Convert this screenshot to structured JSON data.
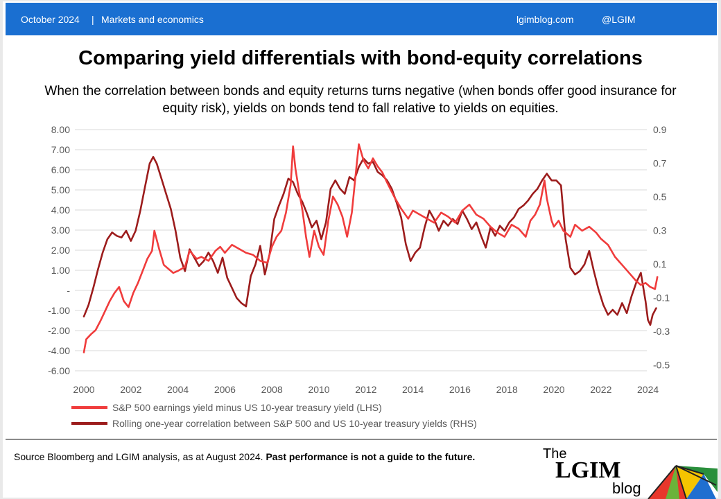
{
  "header": {
    "date": "October 2024",
    "separator": "|",
    "section": "Markets and economics",
    "site": "lgimblog.com",
    "handle": "@LGIM"
  },
  "title": "Comparing yield differentials with bond-equity correlations",
  "subtitle": "When the correlation between bonds and equity returns turns negative (when bonds offer good insurance for equity risk), yields on bonds tend to fall relative to yields on equities.",
  "footer": {
    "source": "Source Bloomberg and LGIM  analysis, as at August 2024.",
    "disclaimer": "Past performance is not a guide to the future."
  },
  "logo": {
    "the": "The",
    "name": "LGIM",
    "blog": "blog"
  },
  "colors": {
    "header_bg": "#1a6fd1",
    "lhs_series": "#f03c3c",
    "rhs_series": "#9c1c1c",
    "gridline": "#d9d9d9",
    "tick_text": "#595959"
  },
  "chart_data": {
    "type": "line",
    "x_ticks": [
      2000,
      2002,
      2004,
      2006,
      2008,
      2010,
      2012,
      2014,
      2016,
      2018,
      2020,
      2022,
      2024
    ],
    "y_left_ticks": [
      "8.00",
      "7.00",
      "6.00",
      "5.00",
      "4.00",
      "3.00",
      "2.00",
      "1.00",
      "-",
      "-1.00",
      "-2.00",
      "-4.00",
      "-6.00"
    ],
    "y_left_lim": [
      -6,
      8
    ],
    "y_right_ticks": [
      "0.9",
      "0.7",
      "0.5",
      "0.3",
      "0.1",
      "-0.1",
      "-0.3",
      "-0.5"
    ],
    "y_right_lim": [
      -0.6,
      0.9
    ],
    "grid": true,
    "legend_position": "bottom-left",
    "series": [
      {
        "name": "S&P 500 earnings yield minus US 10-year treasury yield (LHS)",
        "axis": "left",
        "color": "#f03c3c",
        "points": [
          [
            2000.0,
            -4.3
          ],
          [
            2000.1,
            -3.0
          ],
          [
            2000.3,
            -2.5
          ],
          [
            2000.5,
            -2.1
          ],
          [
            2000.7,
            -1.6
          ],
          [
            2000.9,
            -1.1
          ],
          [
            2001.1,
            -0.6
          ],
          [
            2001.3,
            -0.2
          ],
          [
            2001.5,
            0.1
          ],
          [
            2001.7,
            -0.6
          ],
          [
            2001.9,
            -0.9
          ],
          [
            2002.1,
            -0.2
          ],
          [
            2002.3,
            0.3
          ],
          [
            2002.5,
            0.9
          ],
          [
            2002.7,
            1.5
          ],
          [
            2002.9,
            1.9
          ],
          [
            2003.0,
            2.9
          ],
          [
            2003.2,
            2.0
          ],
          [
            2003.4,
            1.2
          ],
          [
            2003.6,
            1.0
          ],
          [
            2003.8,
            0.8
          ],
          [
            2004.0,
            0.9
          ],
          [
            2004.3,
            1.1
          ],
          [
            2004.5,
            1.9
          ],
          [
            2004.8,
            1.5
          ],
          [
            2005.0,
            1.6
          ],
          [
            2005.3,
            1.4
          ],
          [
            2005.6,
            1.9
          ],
          [
            2005.8,
            2.1
          ],
          [
            2006.0,
            1.8
          ],
          [
            2006.3,
            2.2
          ],
          [
            2006.6,
            2.0
          ],
          [
            2006.9,
            1.8
          ],
          [
            2007.2,
            1.7
          ],
          [
            2007.5,
            1.4
          ],
          [
            2007.8,
            1.3
          ],
          [
            2008.0,
            2.1
          ],
          [
            2008.2,
            2.6
          ],
          [
            2008.4,
            2.9
          ],
          [
            2008.6,
            3.8
          ],
          [
            2008.8,
            5.2
          ],
          [
            2008.9,
            7.1
          ],
          [
            2009.0,
            6.0
          ],
          [
            2009.15,
            4.9
          ],
          [
            2009.3,
            3.9
          ],
          [
            2009.45,
            2.6
          ],
          [
            2009.6,
            1.6
          ],
          [
            2009.8,
            2.9
          ],
          [
            2010.0,
            2.1
          ],
          [
            2010.2,
            1.7
          ],
          [
            2010.4,
            3.4
          ],
          [
            2010.6,
            4.6
          ],
          [
            2010.8,
            4.2
          ],
          [
            2011.0,
            3.6
          ],
          [
            2011.2,
            2.6
          ],
          [
            2011.4,
            3.8
          ],
          [
            2011.6,
            6.1
          ],
          [
            2011.7,
            7.2
          ],
          [
            2011.9,
            6.4
          ],
          [
            2012.1,
            6.0
          ],
          [
            2012.3,
            6.5
          ],
          [
            2012.5,
            6.1
          ],
          [
            2012.7,
            5.8
          ],
          [
            2012.9,
            5.3
          ],
          [
            2013.2,
            4.6
          ],
          [
            2013.5,
            4.0
          ],
          [
            2013.8,
            3.5
          ],
          [
            2014.0,
            3.9
          ],
          [
            2014.3,
            3.7
          ],
          [
            2014.6,
            3.5
          ],
          [
            2014.9,
            3.3
          ],
          [
            2015.2,
            3.8
          ],
          [
            2015.5,
            3.6
          ],
          [
            2015.8,
            3.3
          ],
          [
            2016.1,
            3.9
          ],
          [
            2016.4,
            4.2
          ],
          [
            2016.7,
            3.7
          ],
          [
            2017.0,
            3.5
          ],
          [
            2017.3,
            3.1
          ],
          [
            2017.6,
            2.8
          ],
          [
            2017.9,
            2.6
          ],
          [
            2018.2,
            3.2
          ],
          [
            2018.5,
            3.0
          ],
          [
            2018.8,
            2.6
          ],
          [
            2019.0,
            3.4
          ],
          [
            2019.2,
            3.7
          ],
          [
            2019.4,
            4.2
          ],
          [
            2019.6,
            5.4
          ],
          [
            2019.7,
            4.5
          ],
          [
            2019.9,
            3.4
          ],
          [
            2020.0,
            3.1
          ],
          [
            2020.2,
            3.4
          ],
          [
            2020.4,
            2.9
          ],
          [
            2020.7,
            2.6
          ],
          [
            2020.9,
            3.2
          ],
          [
            2021.2,
            2.9
          ],
          [
            2021.5,
            3.1
          ],
          [
            2021.8,
            2.8
          ],
          [
            2022.0,
            2.5
          ],
          [
            2022.3,
            2.2
          ],
          [
            2022.6,
            1.6
          ],
          [
            2022.9,
            1.2
          ],
          [
            2023.2,
            0.8
          ],
          [
            2023.5,
            0.4
          ],
          [
            2023.7,
            0.2
          ],
          [
            2023.9,
            0.3
          ],
          [
            2024.1,
            0.1
          ],
          [
            2024.3,
            0.0
          ],
          [
            2024.4,
            0.6
          ]
        ]
      },
      {
        "name": "Rolling one-year correlation between S&P 500 and US 10-year treasury yields (RHS)",
        "axis": "right",
        "color": "#9c1c1c",
        "points": [
          [
            2000.0,
            -0.21
          ],
          [
            2000.2,
            -0.14
          ],
          [
            2000.4,
            -0.04
          ],
          [
            2000.6,
            0.07
          ],
          [
            2000.8,
            0.17
          ],
          [
            2001.0,
            0.25
          ],
          [
            2001.2,
            0.29
          ],
          [
            2001.4,
            0.27
          ],
          [
            2001.6,
            0.26
          ],
          [
            2001.8,
            0.3
          ],
          [
            2002.0,
            0.24
          ],
          [
            2002.2,
            0.3
          ],
          [
            2002.4,
            0.42
          ],
          [
            2002.6,
            0.56
          ],
          [
            2002.8,
            0.7
          ],
          [
            2002.95,
            0.74
          ],
          [
            2003.1,
            0.7
          ],
          [
            2003.3,
            0.61
          ],
          [
            2003.5,
            0.52
          ],
          [
            2003.7,
            0.43
          ],
          [
            2003.9,
            0.3
          ],
          [
            2004.1,
            0.14
          ],
          [
            2004.3,
            0.06
          ],
          [
            2004.5,
            0.19
          ],
          [
            2004.7,
            0.14
          ],
          [
            2004.9,
            0.09
          ],
          [
            2005.1,
            0.12
          ],
          [
            2005.3,
            0.17
          ],
          [
            2005.5,
            0.12
          ],
          [
            2005.7,
            0.05
          ],
          [
            2005.9,
            0.14
          ],
          [
            2006.1,
            0.02
          ],
          [
            2006.3,
            -0.04
          ],
          [
            2006.5,
            -0.1
          ],
          [
            2006.7,
            -0.13
          ],
          [
            2006.9,
            -0.15
          ],
          [
            2007.1,
            0.03
          ],
          [
            2007.3,
            0.1
          ],
          [
            2007.5,
            0.21
          ],
          [
            2007.7,
            0.04
          ],
          [
            2007.9,
            0.16
          ],
          [
            2008.1,
            0.37
          ],
          [
            2008.3,
            0.45
          ],
          [
            2008.5,
            0.52
          ],
          [
            2008.7,
            0.61
          ],
          [
            2008.9,
            0.59
          ],
          [
            2009.1,
            0.52
          ],
          [
            2009.3,
            0.47
          ],
          [
            2009.5,
            0.4
          ],
          [
            2009.7,
            0.32
          ],
          [
            2009.9,
            0.36
          ],
          [
            2010.1,
            0.25
          ],
          [
            2010.3,
            0.35
          ],
          [
            2010.5,
            0.55
          ],
          [
            2010.7,
            0.6
          ],
          [
            2010.9,
            0.55
          ],
          [
            2011.1,
            0.52
          ],
          [
            2011.3,
            0.62
          ],
          [
            2011.5,
            0.6
          ],
          [
            2011.7,
            0.68
          ],
          [
            2011.9,
            0.73
          ],
          [
            2012.1,
            0.7
          ],
          [
            2012.3,
            0.71
          ],
          [
            2012.5,
            0.65
          ],
          [
            2012.7,
            0.63
          ],
          [
            2012.9,
            0.6
          ],
          [
            2013.1,
            0.55
          ],
          [
            2013.3,
            0.47
          ],
          [
            2013.5,
            0.38
          ],
          [
            2013.7,
            0.22
          ],
          [
            2013.9,
            0.12
          ],
          [
            2014.1,
            0.17
          ],
          [
            2014.3,
            0.2
          ],
          [
            2014.5,
            0.32
          ],
          [
            2014.7,
            0.42
          ],
          [
            2014.9,
            0.37
          ],
          [
            2015.1,
            0.3
          ],
          [
            2015.3,
            0.36
          ],
          [
            2015.5,
            0.33
          ],
          [
            2015.7,
            0.37
          ],
          [
            2015.9,
            0.34
          ],
          [
            2016.1,
            0.42
          ],
          [
            2016.3,
            0.37
          ],
          [
            2016.5,
            0.31
          ],
          [
            2016.7,
            0.35
          ],
          [
            2016.9,
            0.27
          ],
          [
            2017.1,
            0.2
          ],
          [
            2017.3,
            0.32
          ],
          [
            2017.5,
            0.27
          ],
          [
            2017.7,
            0.33
          ],
          [
            2017.9,
            0.3
          ],
          [
            2018.1,
            0.35
          ],
          [
            2018.3,
            0.38
          ],
          [
            2018.5,
            0.43
          ],
          [
            2018.7,
            0.45
          ],
          [
            2018.9,
            0.48
          ],
          [
            2019.1,
            0.52
          ],
          [
            2019.3,
            0.55
          ],
          [
            2019.5,
            0.6
          ],
          [
            2019.7,
            0.64
          ],
          [
            2019.9,
            0.6
          ],
          [
            2020.1,
            0.6
          ],
          [
            2020.3,
            0.57
          ],
          [
            2020.5,
            0.25
          ],
          [
            2020.7,
            0.08
          ],
          [
            2020.9,
            0.04
          ],
          [
            2021.1,
            0.06
          ],
          [
            2021.3,
            0.1
          ],
          [
            2021.5,
            0.18
          ],
          [
            2021.7,
            0.06
          ],
          [
            2021.9,
            -0.05
          ],
          [
            2022.1,
            -0.14
          ],
          [
            2022.3,
            -0.2
          ],
          [
            2022.5,
            -0.17
          ],
          [
            2022.7,
            -0.2
          ],
          [
            2022.9,
            -0.13
          ],
          [
            2023.1,
            -0.19
          ],
          [
            2023.3,
            -0.09
          ],
          [
            2023.5,
            -0.01
          ],
          [
            2023.7,
            0.05
          ],
          [
            2023.9,
            -0.12
          ],
          [
            2024.0,
            -0.23
          ],
          [
            2024.1,
            -0.26
          ],
          [
            2024.2,
            -0.2
          ],
          [
            2024.35,
            -0.16
          ]
        ]
      }
    ]
  }
}
